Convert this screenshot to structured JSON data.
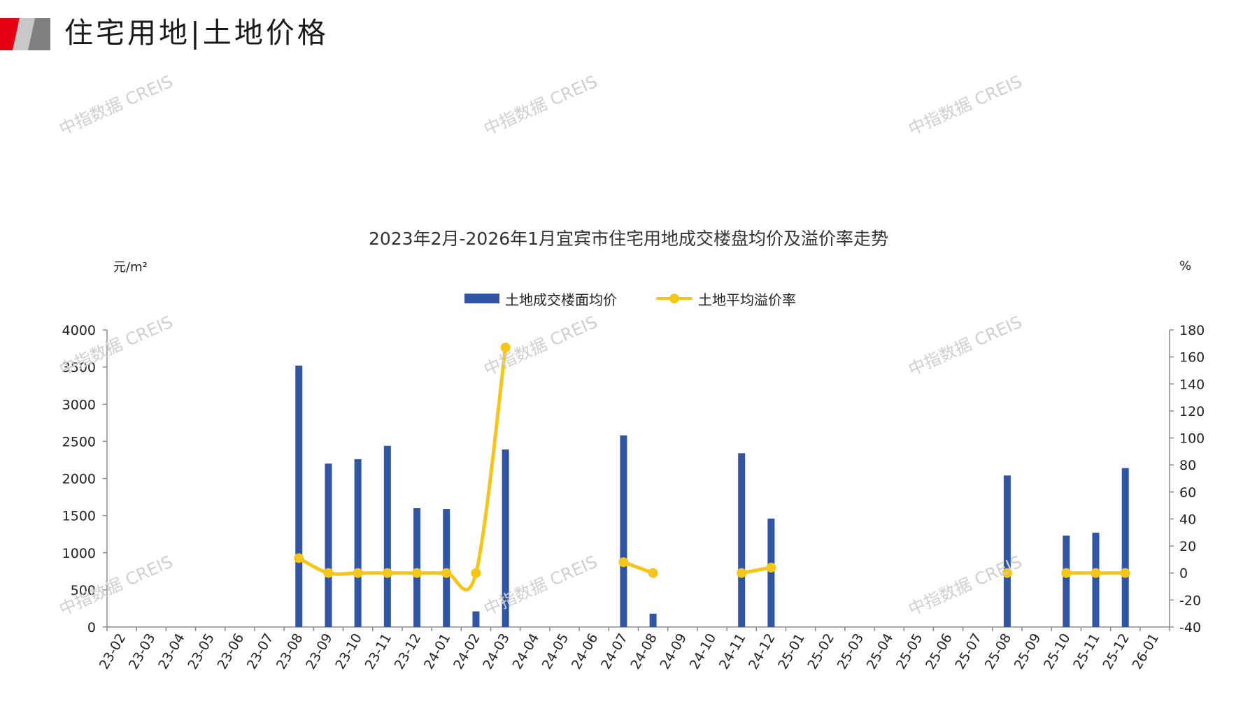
{
  "header": {
    "title": "住宅用地|土地价格",
    "logo_colors": [
      "#e60012",
      "#7f7f7f",
      "#c8c8c8"
    ]
  },
  "watermark": {
    "text": "中指数据 CREIS",
    "color": "#cfcfcf"
  },
  "chart_data": {
    "type": "bar+line",
    "title": "2023年2月-2026年1月宜宾市住宅用地成交楼盘均价及溢价率走势",
    "y_left_label": "元/m²",
    "y_right_label": "%",
    "y_left_lim": [
      0,
      4000
    ],
    "y_left_ticks": [
      0,
      500,
      1000,
      1500,
      2000,
      2500,
      3000,
      3500,
      4000
    ],
    "y_right_lim": [
      -40,
      180
    ],
    "y_right_ticks": [
      -40,
      -20,
      0,
      20,
      40,
      60,
      80,
      100,
      120,
      140,
      160,
      180
    ],
    "legend_position": "top-center",
    "grid": false,
    "categories": [
      "23-02",
      "23-03",
      "23-04",
      "23-05",
      "23-06",
      "23-07",
      "23-08",
      "23-09",
      "23-10",
      "23-11",
      "23-12",
      "24-01",
      "24-02",
      "24-03",
      "24-04",
      "24-05",
      "24-06",
      "24-07",
      "24-08",
      "24-09",
      "24-10",
      "24-11",
      "24-12",
      "25-01",
      "25-02",
      "25-03",
      "25-04",
      "25-05",
      "25-06",
      "25-07",
      "25-08",
      "25-09",
      "25-10",
      "25-11",
      "25-12",
      "26-01"
    ],
    "series": [
      {
        "name": "土地成交楼面均价",
        "type": "bar",
        "axis": "left",
        "color": "#2f55a4",
        "values": [
          null,
          null,
          null,
          null,
          null,
          null,
          3520,
          2200,
          2260,
          2440,
          1600,
          1590,
          210,
          2390,
          null,
          null,
          null,
          2580,
          180,
          null,
          null,
          2340,
          1460,
          null,
          null,
          null,
          null,
          null,
          null,
          null,
          2040,
          null,
          1230,
          1270,
          2140,
          null
        ]
      },
      {
        "name": "土地平均溢价率",
        "type": "line",
        "axis": "right",
        "color": "#f5c518",
        "values": [
          null,
          null,
          null,
          null,
          null,
          null,
          11,
          0,
          0,
          0,
          0,
          0,
          0,
          167,
          null,
          null,
          null,
          8,
          0,
          null,
          null,
          0,
          4,
          null,
          null,
          null,
          null,
          null,
          null,
          null,
          0,
          null,
          0,
          0,
          0,
          null
        ]
      }
    ]
  }
}
